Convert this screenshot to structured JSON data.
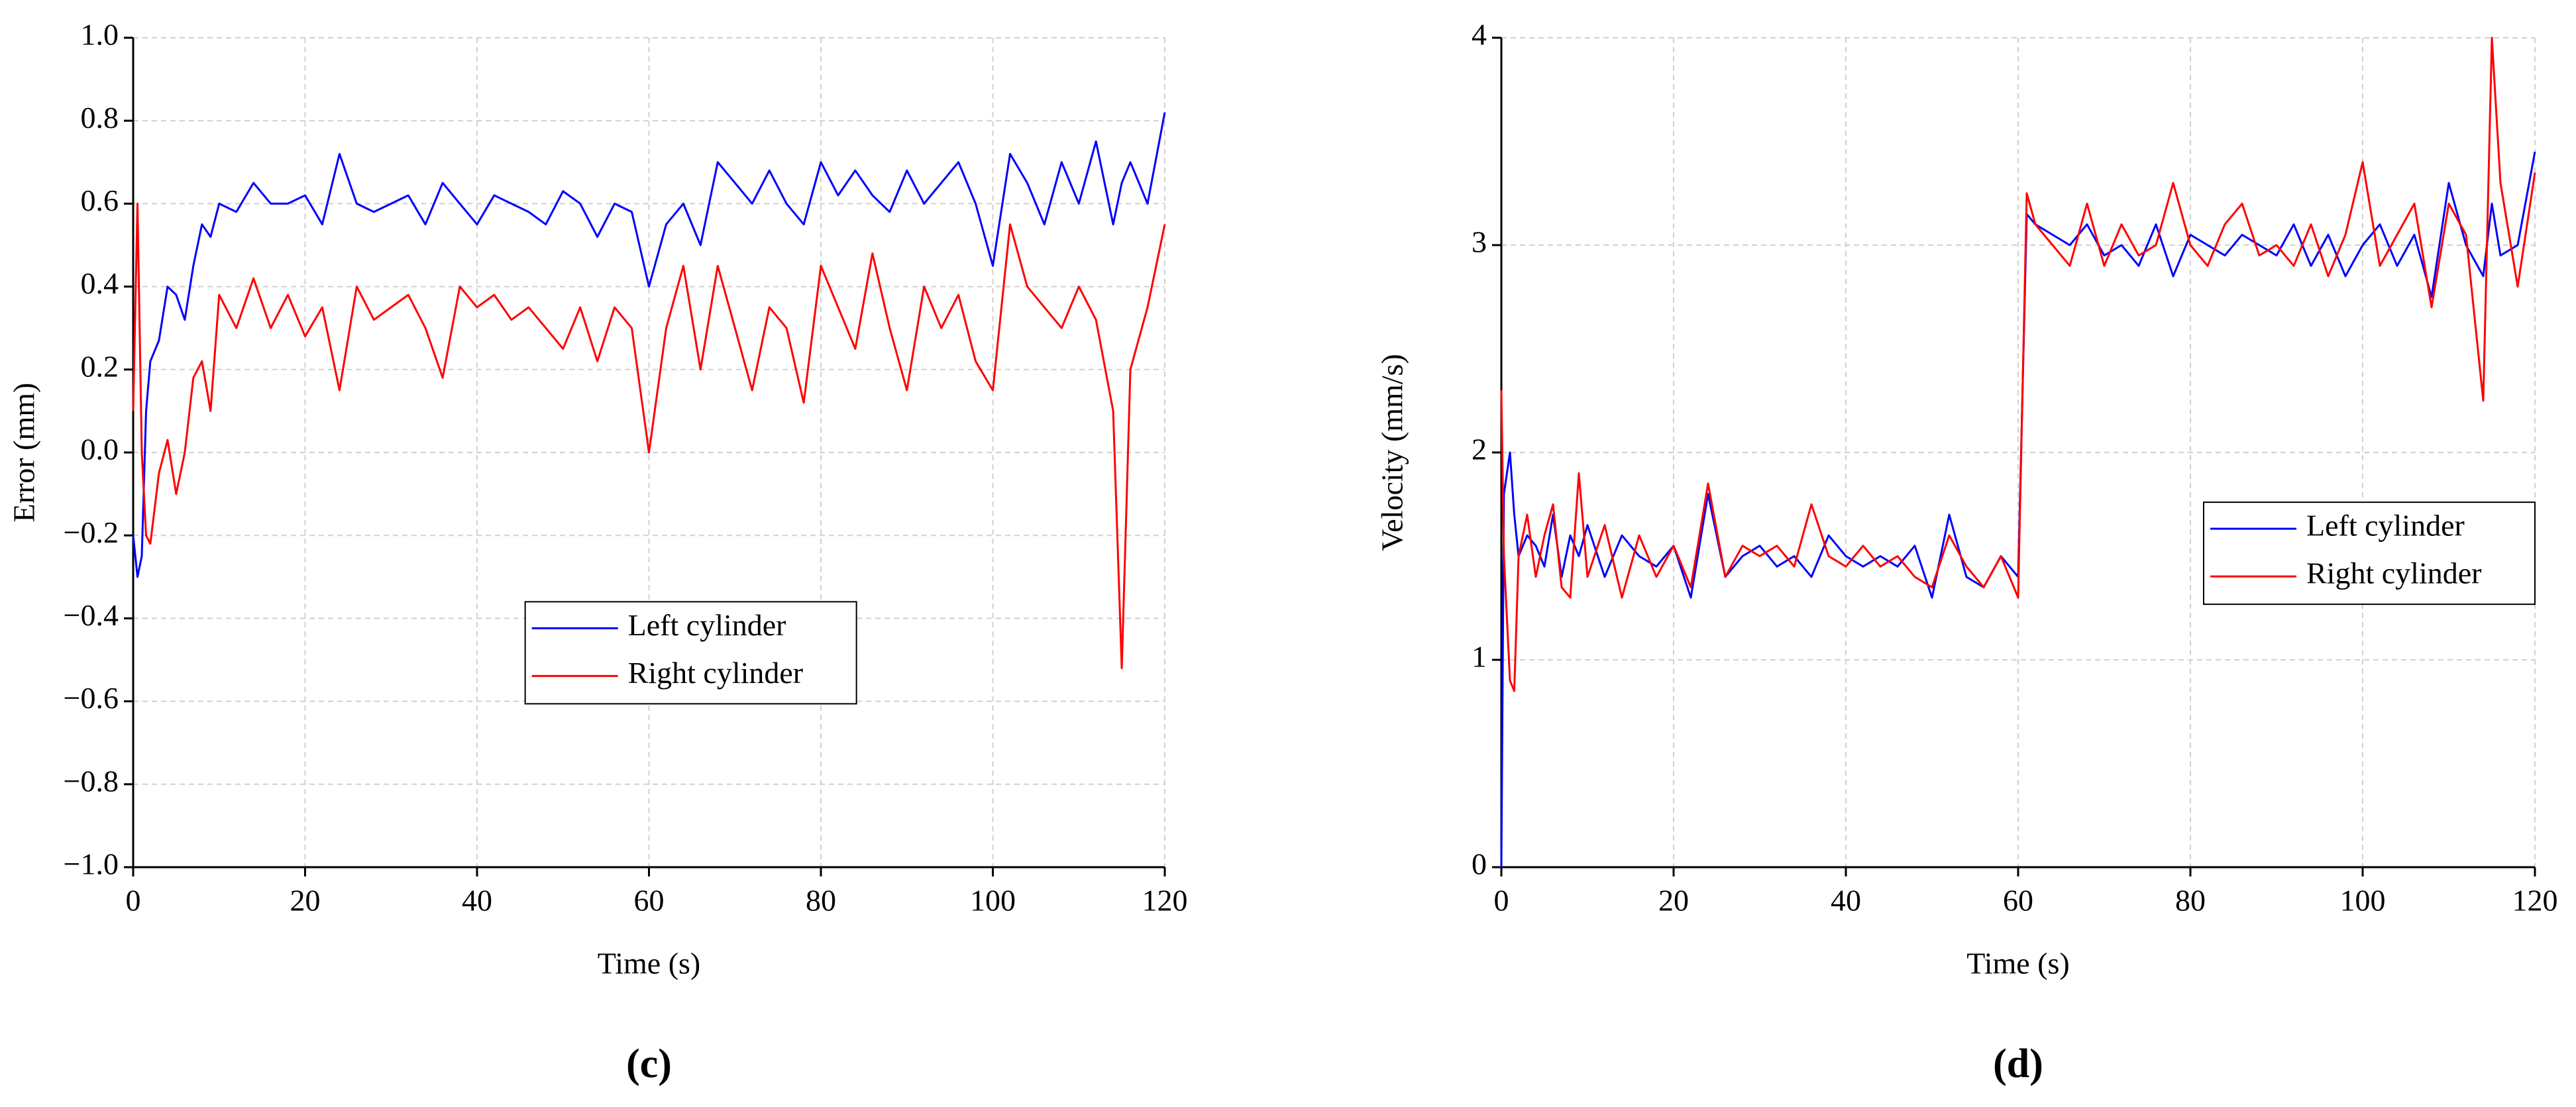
{
  "chart_data": [
    {
      "type": "line",
      "panel_label": "(c)",
      "xlabel": "Time (s)",
      "ylabel": "Error (mm)",
      "xlim": [
        0,
        120
      ],
      "xticks": [
        0,
        20,
        40,
        60,
        80,
        100,
        120
      ],
      "ylim": [
        -1.0,
        1.0
      ],
      "yticks": [
        {
          "value": -1.0,
          "label": "−1.0"
        },
        {
          "value": -0.8,
          "label": "−0.8"
        },
        {
          "value": -0.6,
          "label": "−0.6"
        },
        {
          "value": -0.4,
          "label": "−0.4"
        },
        {
          "value": -0.2,
          "label": "−0.2"
        },
        {
          "value": 0,
          "label": "0.0"
        },
        0.2,
        0.4,
        0.6,
        0.8,
        {
          "value": 1.0,
          "label": "1.0"
        }
      ],
      "grid": true,
      "legend": "lower center",
      "x": [
        0,
        0.5,
        1,
        1.5,
        2,
        3,
        4,
        5,
        6,
        7,
        8,
        9,
        10,
        12,
        14,
        16,
        18,
        20,
        22,
        24,
        26,
        28,
        30,
        32,
        34,
        36,
        38,
        40,
        42,
        44,
        46,
        48,
        50,
        52,
        54,
        56,
        58,
        60,
        62,
        64,
        66,
        68,
        70,
        72,
        74,
        76,
        78,
        80,
        82,
        84,
        86,
        88,
        90,
        92,
        94,
        96,
        98,
        100,
        102,
        104,
        106,
        108,
        110,
        112,
        114,
        115,
        116,
        118,
        120
      ],
      "series": [
        {
          "name": "Left cylinder",
          "color": "#0000ff",
          "values": [
            -0.2,
            -0.3,
            -0.25,
            0.1,
            0.22,
            0.27,
            0.4,
            0.38,
            0.32,
            0.45,
            0.55,
            0.52,
            0.6,
            0.58,
            0.65,
            0.6,
            0.6,
            0.62,
            0.55,
            0.72,
            0.6,
            0.58,
            0.6,
            0.62,
            0.55,
            0.65,
            0.6,
            0.55,
            0.62,
            0.6,
            0.58,
            0.55,
            0.63,
            0.6,
            0.52,
            0.6,
            0.58,
            0.4,
            0.55,
            0.6,
            0.5,
            0.7,
            0.65,
            0.6,
            0.68,
            0.6,
            0.55,
            0.7,
            0.62,
            0.68,
            0.62,
            0.58,
            0.68,
            0.6,
            0.65,
            0.7,
            0.6,
            0.45,
            0.72,
            0.65,
            0.55,
            0.7,
            0.6,
            0.75,
            0.55,
            0.65,
            0.7,
            0.6,
            0.82
          ]
        },
        {
          "name": "Right cylinder",
          "color": "#ff0000",
          "values": [
            0.1,
            0.6,
            0.0,
            -0.2,
            -0.22,
            -0.05,
            0.03,
            -0.1,
            0.0,
            0.18,
            0.22,
            0.1,
            0.38,
            0.3,
            0.42,
            0.3,
            0.38,
            0.28,
            0.35,
            0.15,
            0.4,
            0.32,
            0.35,
            0.38,
            0.3,
            0.18,
            0.4,
            0.35,
            0.38,
            0.32,
            0.35,
            0.3,
            0.25,
            0.35,
            0.22,
            0.35,
            0.3,
            0.0,
            0.3,
            0.45,
            0.2,
            0.45,
            0.3,
            0.15,
            0.35,
            0.3,
            0.12,
            0.45,
            0.35,
            0.25,
            0.48,
            0.3,
            0.15,
            0.4,
            0.3,
            0.38,
            0.22,
            0.15,
            0.55,
            0.4,
            0.35,
            0.3,
            0.4,
            0.32,
            0.1,
            -0.52,
            0.2,
            0.35,
            0.55
          ]
        }
      ]
    },
    {
      "type": "line",
      "panel_label": "(d)",
      "xlabel": "Time (s)",
      "ylabel": "Velocity (mm/s)",
      "xlim": [
        0,
        120
      ],
      "xticks": [
        0,
        20,
        40,
        60,
        80,
        100,
        120
      ],
      "ylim": [
        0,
        4
      ],
      "yticks": [
        0,
        1,
        2,
        3,
        4
      ],
      "grid": true,
      "legend": "center right",
      "x": [
        0,
        0.3,
        1,
        1.5,
        2,
        3,
        4,
        5,
        6,
        7,
        8,
        9,
        10,
        12,
        14,
        16,
        18,
        20,
        22,
        24,
        26,
        28,
        30,
        32,
        34,
        36,
        38,
        40,
        42,
        44,
        46,
        48,
        50,
        52,
        54,
        56,
        58,
        59,
        60,
        61,
        62,
        64,
        66,
        68,
        70,
        72,
        74,
        76,
        78,
        80,
        82,
        84,
        86,
        88,
        90,
        92,
        94,
        96,
        98,
        100,
        102,
        104,
        106,
        108,
        110,
        112,
        114,
        115,
        116,
        118,
        120
      ],
      "series": [
        {
          "name": "Left cylinder",
          "color": "#0000ff",
          "values": [
            0,
            1.8,
            2.0,
            1.7,
            1.5,
            1.6,
            1.55,
            1.45,
            1.7,
            1.4,
            1.6,
            1.5,
            1.65,
            1.4,
            1.6,
            1.5,
            1.45,
            1.55,
            1.3,
            1.8,
            1.4,
            1.5,
            1.55,
            1.45,
            1.5,
            1.4,
            1.6,
            1.5,
            1.45,
            1.5,
            1.45,
            1.55,
            1.3,
            1.7,
            1.4,
            1.35,
            1.5,
            1.45,
            1.4,
            3.15,
            3.1,
            3.05,
            3.0,
            3.1,
            2.95,
            3.0,
            2.9,
            3.1,
            2.85,
            3.05,
            3.0,
            2.95,
            3.05,
            3.0,
            2.95,
            3.1,
            2.9,
            3.05,
            2.85,
            3.0,
            3.1,
            2.9,
            3.05,
            2.75,
            3.3,
            3.0,
            2.85,
            3.2,
            2.95,
            3.0,
            3.45
          ]
        },
        {
          "name": "Right cylinder",
          "color": "#ff0000",
          "values": [
            2.3,
            1.5,
            0.9,
            0.85,
            1.5,
            1.7,
            1.4,
            1.6,
            1.75,
            1.35,
            1.3,
            1.9,
            1.4,
            1.65,
            1.3,
            1.6,
            1.4,
            1.55,
            1.35,
            1.85,
            1.4,
            1.55,
            1.5,
            1.55,
            1.45,
            1.75,
            1.5,
            1.45,
            1.55,
            1.45,
            1.5,
            1.4,
            1.35,
            1.6,
            1.45,
            1.35,
            1.5,
            1.4,
            1.3,
            3.25,
            3.1,
            3.0,
            2.9,
            3.2,
            2.9,
            3.1,
            2.95,
            3.0,
            3.3,
            3.0,
            2.9,
            3.1,
            3.2,
            2.95,
            3.0,
            2.9,
            3.1,
            2.85,
            3.05,
            3.4,
            2.9,
            3.05,
            3.2,
            2.7,
            3.2,
            3.05,
            2.25,
            4.0,
            3.3,
            2.8,
            3.35
          ]
        }
      ]
    }
  ]
}
